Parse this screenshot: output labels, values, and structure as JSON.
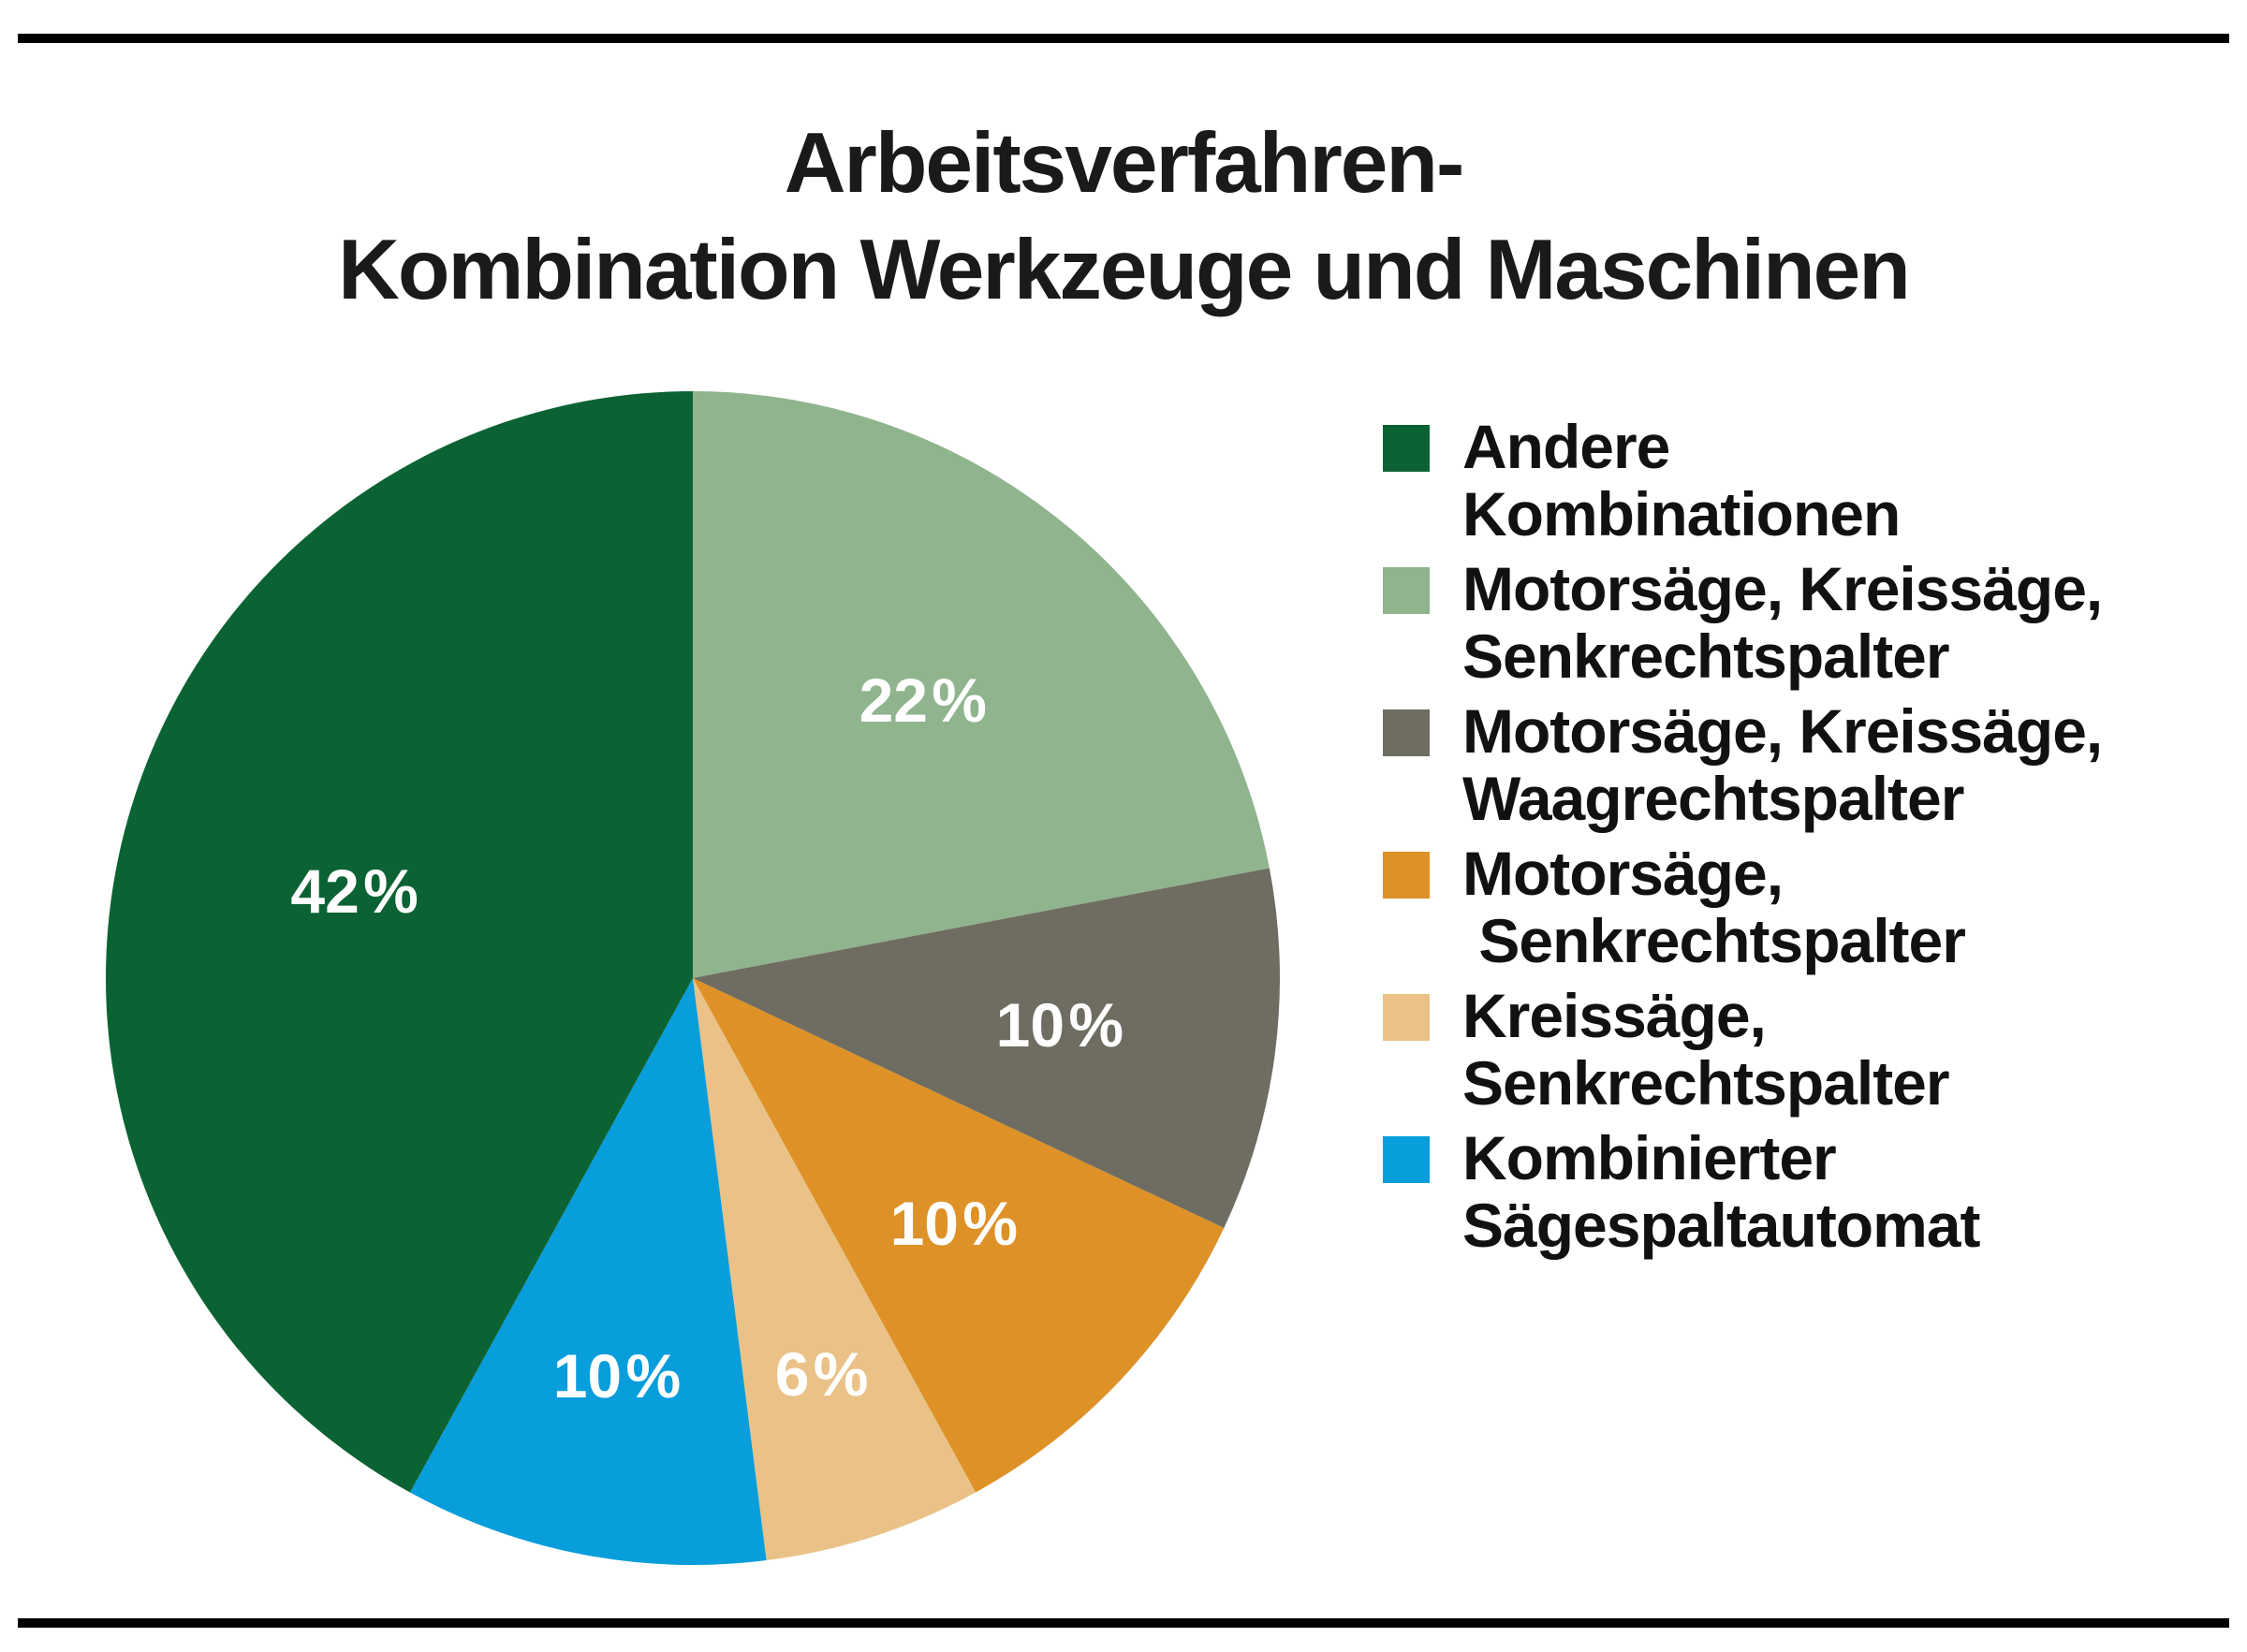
{
  "page": {
    "background": "#ffffff",
    "rule_color": "#000000"
  },
  "title": {
    "line1": "Arbeitsverfahren-",
    "line2": "Kombination Werkzeuge und Maschinen"
  },
  "chart_data": {
    "type": "pie",
    "title": "Arbeitsverfahren-Kombination Werkzeuge und Maschinen",
    "unit": "%",
    "start_angle_deg": 0,
    "direction": "clockwise",
    "legend_position": "right",
    "label_text_color": "#ffffff",
    "slices": [
      {
        "label": "Andere\nKombinationen",
        "value": 42,
        "display": "42 %",
        "color": "#0B6333",
        "label_radius": 0.595,
        "label_color": "#ffffff"
      },
      {
        "label": "Motorsäge, Kreissäge,\nSenkrechtspalter",
        "value": 22,
        "display": "22 %",
        "color": "#8FB48E",
        "label_radius": 0.615,
        "label_color": "#ffffff"
      },
      {
        "label": "Motorsäge, Kreissäge,\nWaagrechtspalter",
        "value": 10,
        "display": "10 %",
        "color": "#6F6D61",
        "label_radius": 0.63,
        "label_color": "#ffffff"
      },
      {
        "label": "Motorsäge,\n Senkrechtspalter",
        "value": 10,
        "display": "10 %",
        "color": "#DD9127",
        "label_radius": 0.61,
        "label_color": "#ffffff"
      },
      {
        "label": "Kreissäge,\nSenkrechtspalter",
        "value": 6,
        "display": "6 %",
        "color": "#EAC287",
        "label_radius": 0.71,
        "label_color": "#ffffff"
      },
      {
        "label": "Kombinierter\nSägespaltautomat",
        "value": 10,
        "display": "10 %",
        "color": "#089DDB",
        "label_radius": 0.69,
        "label_color": "#ffffff"
      }
    ],
    "draw_order": [
      1,
      2,
      3,
      4,
      5,
      0
    ]
  }
}
